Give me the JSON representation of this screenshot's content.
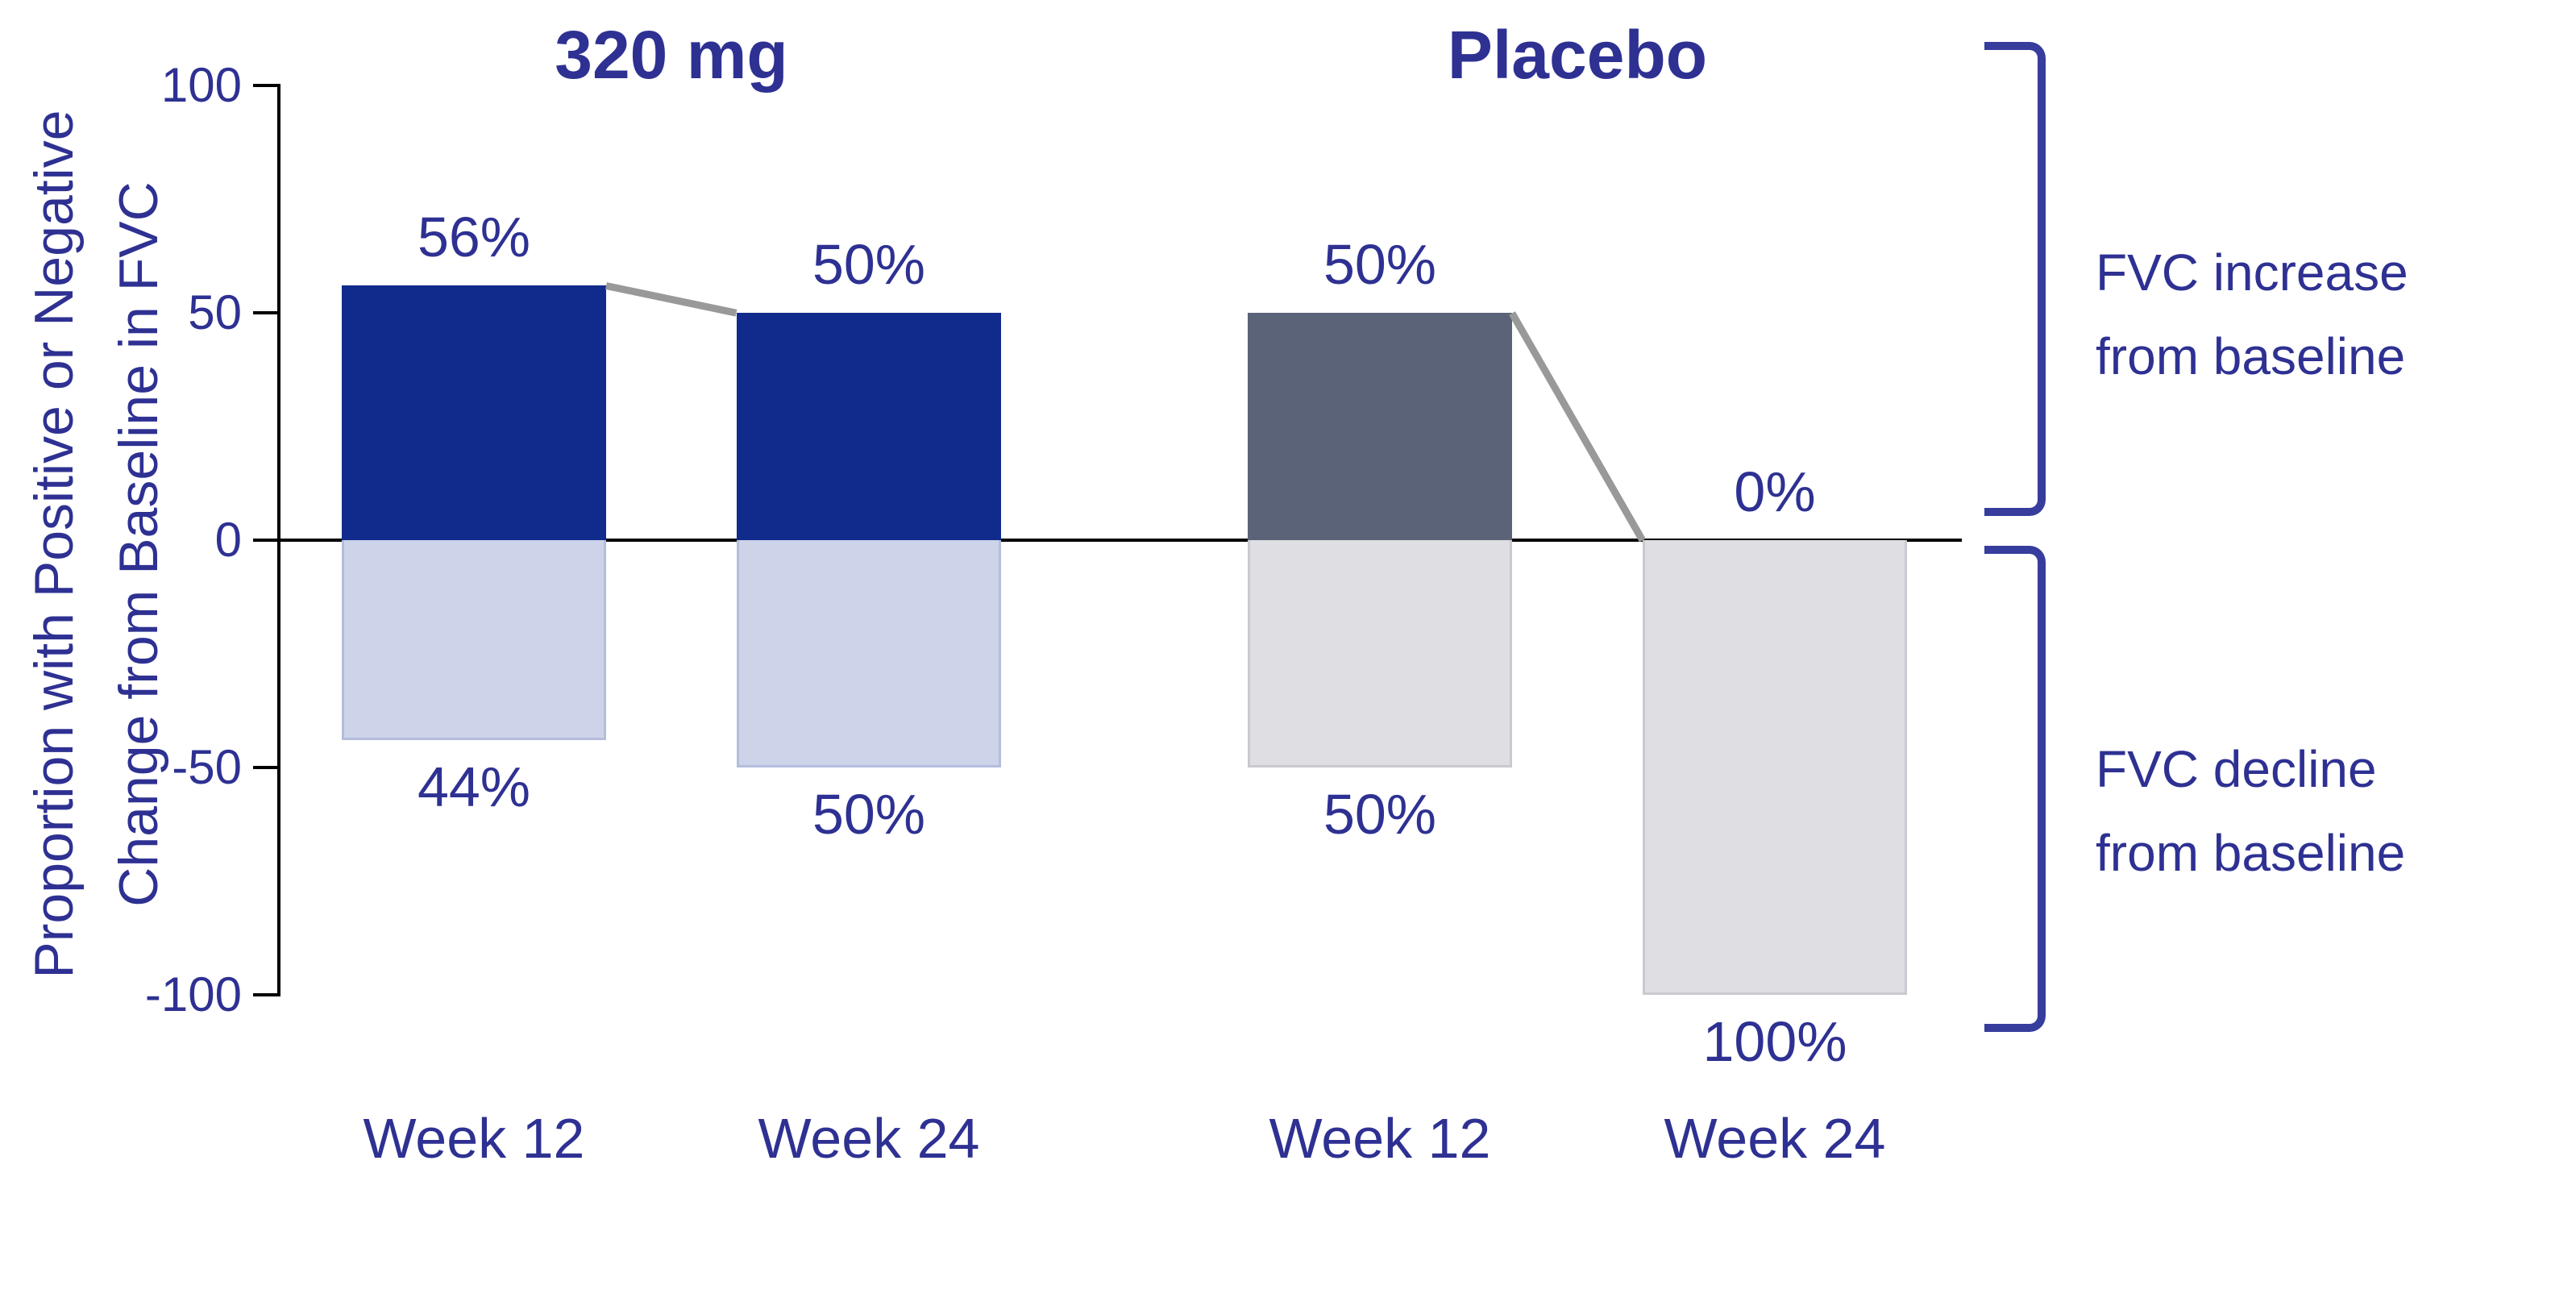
{
  "chart_data": {
    "type": "bar",
    "title": "",
    "ylabel_lines": [
      "Proportion with Positive or Negative",
      "Change from Baseline in FVC"
    ],
    "ylim": [
      -100,
      100
    ],
    "grid": false,
    "legend_position": "none",
    "yticks": [
      {
        "value": 100,
        "label": "100"
      },
      {
        "value": 50,
        "label": "50"
      },
      {
        "value": 0,
        "label": "0"
      },
      {
        "value": -50,
        "label": "-50"
      },
      {
        "value": -100,
        "label": "-100"
      }
    ],
    "groups": [
      {
        "label": "320 mg",
        "color_increase": "#112B8D",
        "color_decline": "#CDD3E8",
        "color_decline_border": "#B4BDDC",
        "bars": [
          {
            "week": "Week 12",
            "increase_pct": 56,
            "decline_pct": 44,
            "increase_label": "56%",
            "decline_label": "44%"
          },
          {
            "week": "Week 24",
            "increase_pct": 50,
            "decline_pct": 50,
            "increase_label": "50%",
            "decline_label": "50%"
          }
        ]
      },
      {
        "label": "Placebo",
        "color_increase": "#5A6378",
        "color_decline": "#DFDFE3",
        "color_decline_border": "#C9C9D1",
        "bars": [
          {
            "week": "Week 12",
            "increase_pct": 50,
            "decline_pct": 50,
            "increase_label": "50%",
            "decline_label": "50%"
          },
          {
            "week": "Week 24",
            "increase_pct": 0,
            "decline_pct": 100,
            "increase_label": "0%",
            "decline_label": "100%"
          }
        ]
      }
    ],
    "connectors": [
      {
        "group": 0,
        "from_bar": 0,
        "to_bar": 1
      },
      {
        "group": 1,
        "from_bar": 0,
        "to_bar": 1
      }
    ],
    "right_annotations": [
      {
        "lines": [
          "FVC increase",
          "from baseline"
        ]
      },
      {
        "lines": [
          "FVC decline",
          "from baseline"
        ]
      }
    ]
  },
  "colors": {
    "text": "#2E3192",
    "axis": "#000000",
    "connector": "#999999",
    "bracket": "#363D9C"
  }
}
